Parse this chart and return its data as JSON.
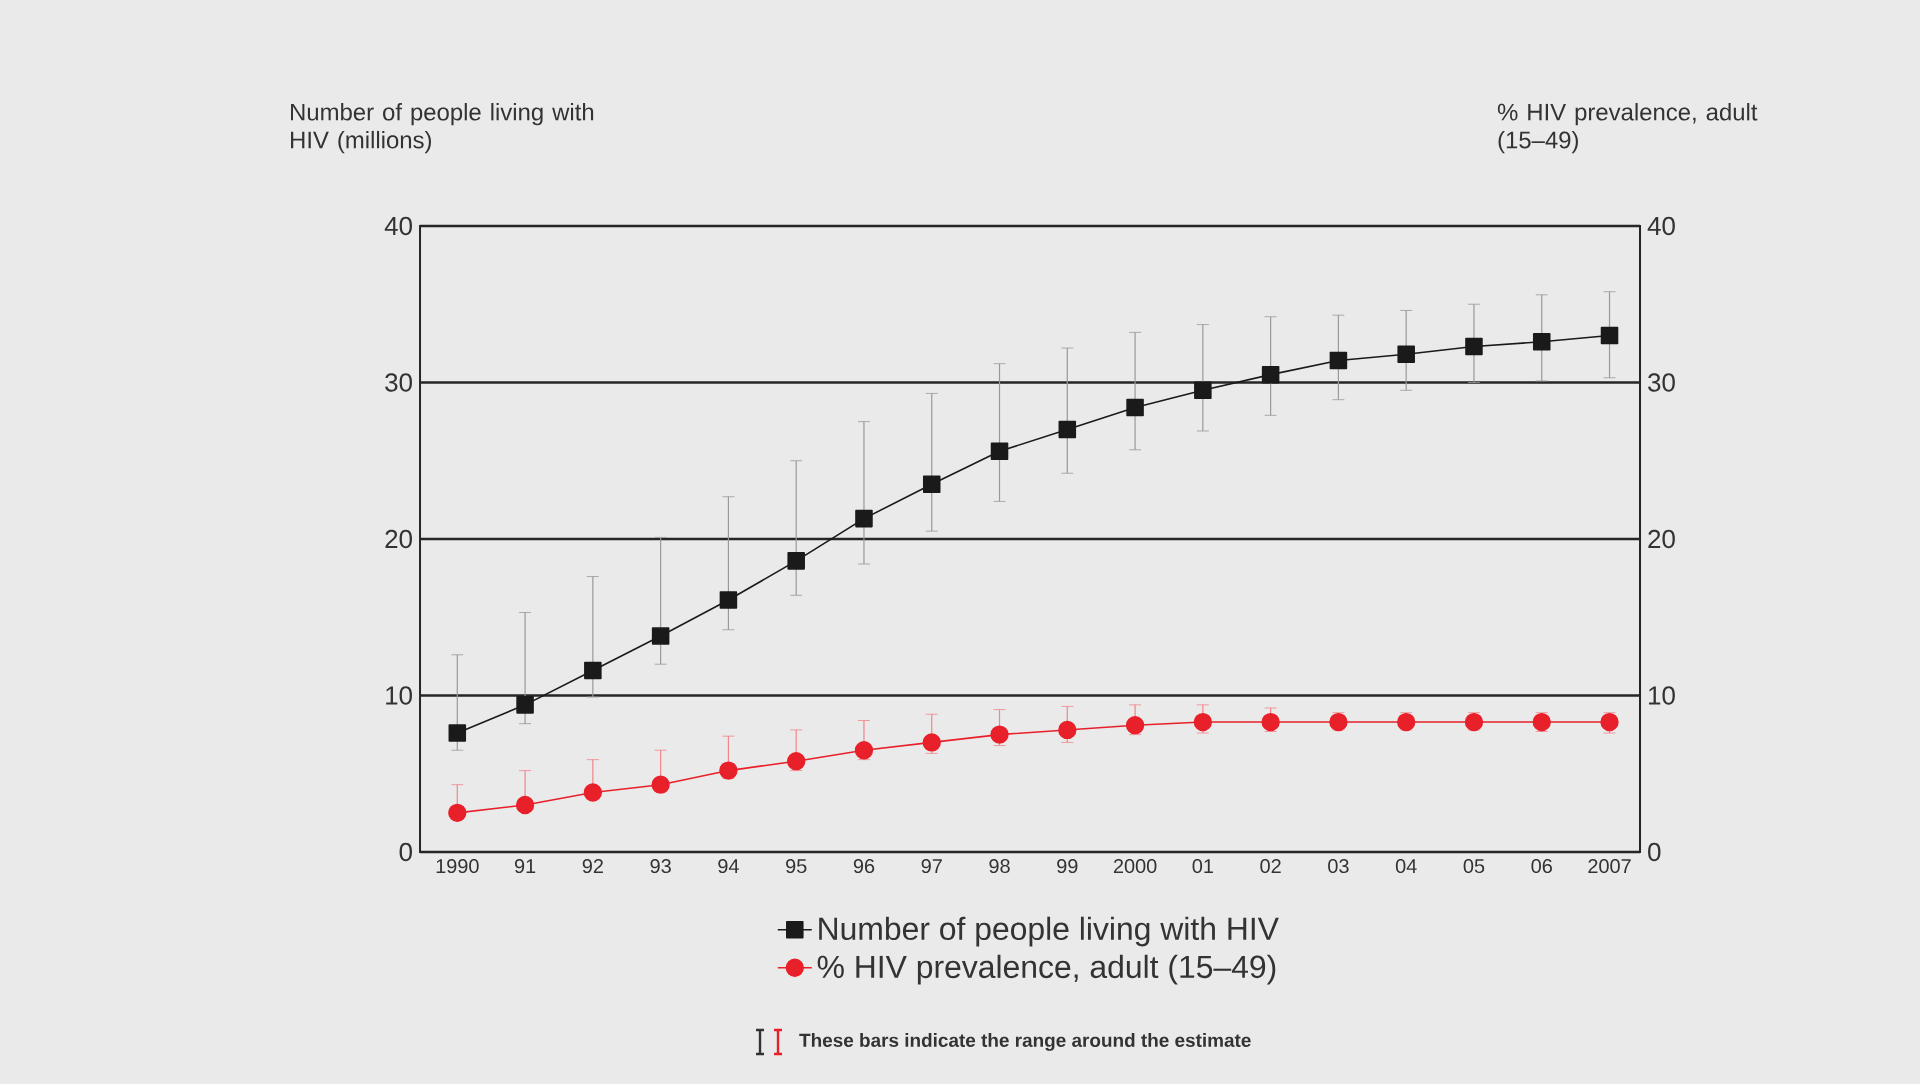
{
  "chart_data": {
    "type": "line",
    "ylabel": "Number of people living with HIV (millions)",
    "y2label": "% HIV prevalence, adult (15–49)",
    "categories": [
      "1990",
      "91",
      "92",
      "93",
      "94",
      "95",
      "96",
      "97",
      "98",
      "99",
      "2000",
      "01",
      "02",
      "03",
      "04",
      "05",
      "06",
      "2007"
    ],
    "series": [
      {
        "name": "Number of people living with HIV",
        "color": "#1a1a1a",
        "marker": "square",
        "values": [
          7.6,
          9.4,
          11.6,
          13.8,
          16.1,
          18.6,
          21.3,
          23.5,
          25.6,
          27.0,
          28.4,
          29.5,
          30.5,
          31.4,
          31.8,
          32.3,
          32.6,
          33.0
        ],
        "errors": [
          [
            6.5,
            12.6
          ],
          [
            8.2,
            15.3
          ],
          [
            9.9,
            17.6
          ],
          [
            12.0,
            20.1
          ],
          [
            14.2,
            22.7
          ],
          [
            16.4,
            25.0
          ],
          [
            18.4,
            27.5
          ],
          [
            20.5,
            29.3
          ],
          [
            22.4,
            31.2
          ],
          [
            24.2,
            32.2
          ],
          [
            25.7,
            33.2
          ],
          [
            26.9,
            33.7
          ],
          [
            27.9,
            34.2
          ],
          [
            28.9,
            34.3
          ],
          [
            29.5,
            34.6
          ],
          [
            30.0,
            35.0
          ],
          [
            30.1,
            35.6
          ],
          [
            30.3,
            35.8
          ]
        ]
      },
      {
        "name": "% HIV prevalence, adult (15–49)",
        "color": "#e8202a",
        "marker": "circle",
        "axis": "y2",
        "values": [
          2.5,
          3.0,
          3.8,
          4.3,
          5.2,
          5.8,
          6.5,
          7.0,
          7.5,
          7.8,
          8.1,
          8.3,
          8.3,
          8.3,
          8.3,
          8.3,
          8.3,
          8.3
        ],
        "errors": [
          [
            2.2,
            4.3
          ],
          [
            2.7,
            5.2
          ],
          [
            3.4,
            5.9
          ],
          [
            3.9,
            6.5
          ],
          [
            4.7,
            7.4
          ],
          [
            5.2,
            7.8
          ],
          [
            5.9,
            8.4
          ],
          [
            6.3,
            8.8
          ],
          [
            6.8,
            9.1
          ],
          [
            7.0,
            9.3
          ],
          [
            7.5,
            9.4
          ],
          [
            7.6,
            9.4
          ],
          [
            7.7,
            9.2
          ],
          [
            7.8,
            8.9
          ],
          [
            7.8,
            8.9
          ],
          [
            7.8,
            8.9
          ],
          [
            7.7,
            8.9
          ],
          [
            7.6,
            8.9
          ]
        ]
      }
    ],
    "ylim": [
      0,
      40
    ],
    "yticks": [
      0,
      10,
      20,
      30,
      40
    ],
    "y2lim": [
      0,
      40
    ],
    "y2ticks": [
      0,
      10,
      20,
      30,
      40
    ],
    "grid": "y",
    "legend": "bottom",
    "line_style": "solid",
    "annotations": [
      "These bars indicate the range around the estimate"
    ]
  }
}
